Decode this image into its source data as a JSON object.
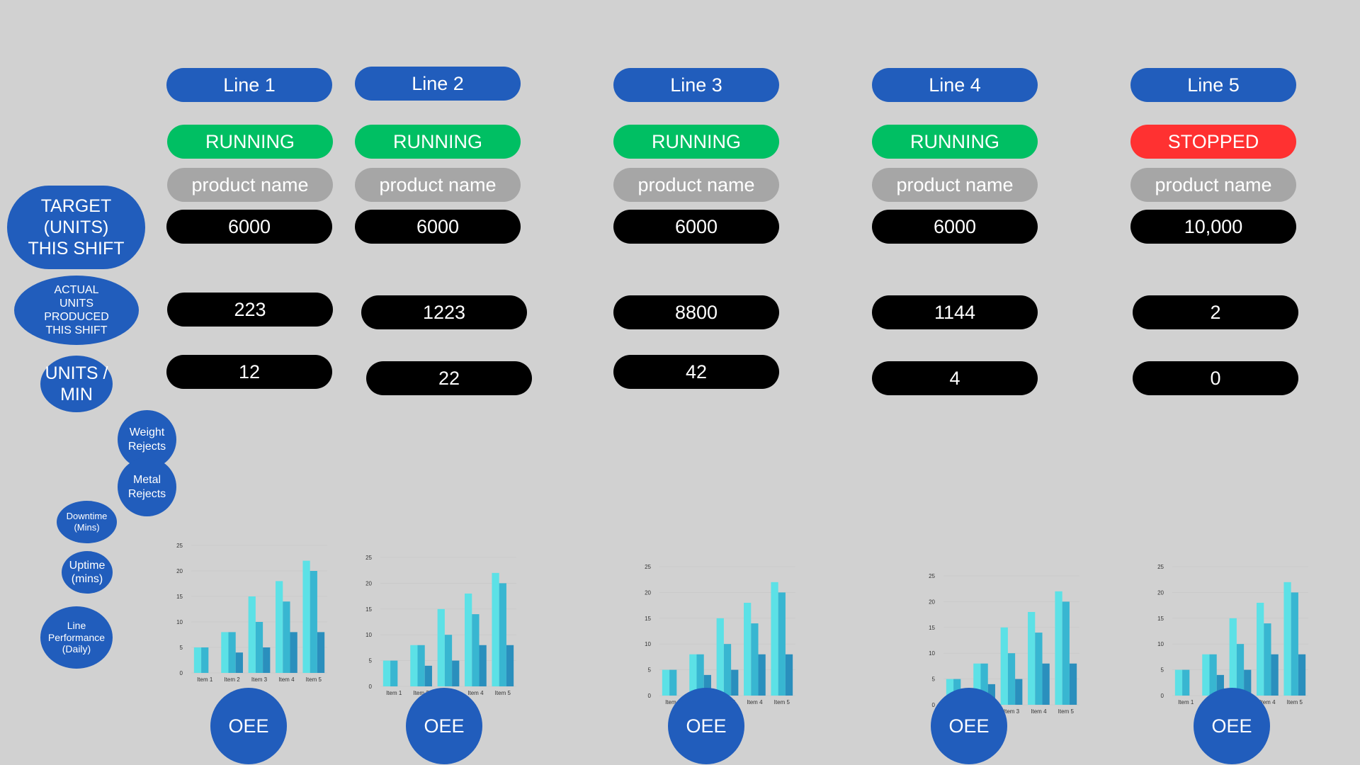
{
  "row_labels": {
    "target": "TARGET (UNITS) THIS SHIFT",
    "actual": "ACTUAL UNITS PRODUCED THIS SHIFT",
    "units_per_min": "UNITS / MIN",
    "weight_rejects": "Weight Rejects",
    "metal_rejects": "Metal Rejects",
    "downtime": "Downtime (Mins)",
    "uptime": "Uptime (mins)",
    "line_performance": "Line Performance (Daily)"
  },
  "lines": [
    {
      "name": "Line 1",
      "status": "RUNNING",
      "status_color": "#00bf63",
      "product": "product name",
      "target": "6000",
      "actual": "223",
      "units_per_min": "12",
      "oee_label": "OEE"
    },
    {
      "name": "Line 2",
      "status": "RUNNING",
      "status_color": "#00bf63",
      "product": "product name",
      "target": "6000",
      "actual": "1223",
      "units_per_min": "22",
      "oee_label": "OEE"
    },
    {
      "name": "Line 3",
      "status": "RUNNING",
      "status_color": "#00bf63",
      "product": "product name",
      "target": "6000",
      "actual": "8800",
      "units_per_min": "42",
      "oee_label": "OEE"
    },
    {
      "name": "Line 4",
      "status": "RUNNING",
      "status_color": "#00bf63",
      "product": "product name",
      "target": "6000",
      "actual": "1144",
      "units_per_min": "4",
      "oee_label": "OEE"
    },
    {
      "name": "Line 5",
      "status": "STOPPED",
      "status_color": "#ff3131",
      "product": "product name",
      "target": "10,000",
      "actual": "2",
      "units_per_min": "0",
      "oee_label": "OEE"
    }
  ],
  "colors": {
    "background": "#d1d1d1",
    "accent_blue": "#215dbc",
    "running_green": "#00bf63",
    "stopped_red": "#ff3131",
    "product_gray": "#a6a6a6",
    "value_black": "#000000"
  },
  "chart_data": [
    {
      "type": "bar",
      "categories": [
        "Item 1",
        "Item 2",
        "Item 3",
        "Item 4",
        "Item 5"
      ],
      "ylim": [
        0,
        25
      ],
      "yticks": [
        0,
        5,
        10,
        15,
        20,
        25
      ],
      "series": [
        {
          "values": [
            5,
            8,
            15,
            18,
            22
          ],
          "color": "#5ce1e6"
        },
        {
          "values": [
            5,
            8,
            10,
            14,
            20
          ],
          "color": "#38b6d1"
        },
        {
          "values": [
            0,
            4,
            5,
            8,
            8
          ],
          "color": "#2a8fbd"
        }
      ]
    },
    {
      "type": "bar",
      "categories": [
        "Item 1",
        "Item 2",
        "Item 3",
        "Item 4",
        "Item 5"
      ],
      "ylim": [
        0,
        25
      ],
      "yticks": [
        0,
        5,
        10,
        15,
        20,
        25
      ],
      "series": [
        {
          "values": [
            5,
            8,
            15,
            18,
            22
          ],
          "color": "#5ce1e6"
        },
        {
          "values": [
            5,
            8,
            10,
            14,
            20
          ],
          "color": "#38b6d1"
        },
        {
          "values": [
            0,
            4,
            5,
            8,
            8
          ],
          "color": "#2a8fbd"
        }
      ]
    },
    {
      "type": "bar",
      "categories": [
        "Item 1",
        "Item 2",
        "Item 3",
        "Item 4",
        "Item 5"
      ],
      "ylim": [
        0,
        25
      ],
      "yticks": [
        0,
        5,
        10,
        15,
        20,
        25
      ],
      "series": [
        {
          "values": [
            5,
            8,
            15,
            18,
            22
          ],
          "color": "#5ce1e6"
        },
        {
          "values": [
            5,
            8,
            10,
            14,
            20
          ],
          "color": "#38b6d1"
        },
        {
          "values": [
            0,
            4,
            5,
            8,
            8
          ],
          "color": "#2a8fbd"
        }
      ]
    },
    {
      "type": "bar",
      "categories": [
        "Item 1",
        "Item 2",
        "Item 3",
        "Item 4",
        "Item 5"
      ],
      "ylim": [
        0,
        25
      ],
      "yticks": [
        0,
        5,
        10,
        15,
        20,
        25
      ],
      "series": [
        {
          "values": [
            5,
            8,
            15,
            18,
            22
          ],
          "color": "#5ce1e6"
        },
        {
          "values": [
            5,
            8,
            10,
            14,
            20
          ],
          "color": "#38b6d1"
        },
        {
          "values": [
            0,
            4,
            5,
            8,
            8
          ],
          "color": "#2a8fbd"
        }
      ]
    },
    {
      "type": "bar",
      "categories": [
        "Item 1",
        "Item 2",
        "Item 3",
        "Item 4",
        "Item 5"
      ],
      "ylim": [
        0,
        25
      ],
      "yticks": [
        0,
        5,
        10,
        15,
        20,
        25
      ],
      "series": [
        {
          "values": [
            5,
            8,
            15,
            18,
            22
          ],
          "color": "#5ce1e6"
        },
        {
          "values": [
            5,
            8,
            10,
            14,
            20
          ],
          "color": "#38b6d1"
        },
        {
          "values": [
            0,
            4,
            5,
            8,
            8
          ],
          "color": "#2a8fbd"
        }
      ]
    }
  ]
}
